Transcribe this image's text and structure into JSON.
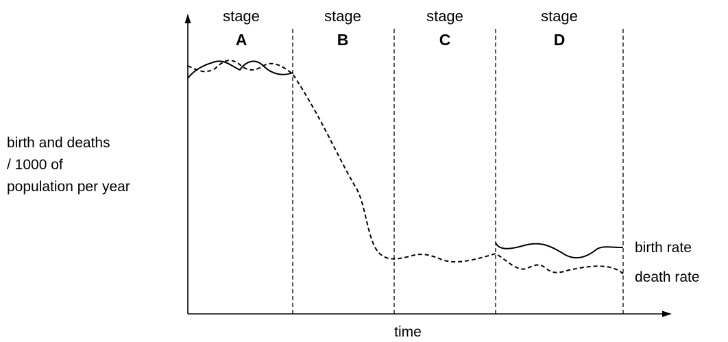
{
  "diagram": {
    "y_axis_label": [
      "birth and deaths",
      "/ 1000 of",
      "population per year"
    ],
    "x_axis_label": "time",
    "stages": [
      {
        "word": "stage",
        "letter": "A"
      },
      {
        "word": "stage",
        "letter": "B"
      },
      {
        "word": "stage",
        "letter": "C"
      },
      {
        "word": "stage",
        "letter": "D"
      }
    ],
    "curve_labels": {
      "birth": "birth rate",
      "death": "death rate"
    }
  }
}
